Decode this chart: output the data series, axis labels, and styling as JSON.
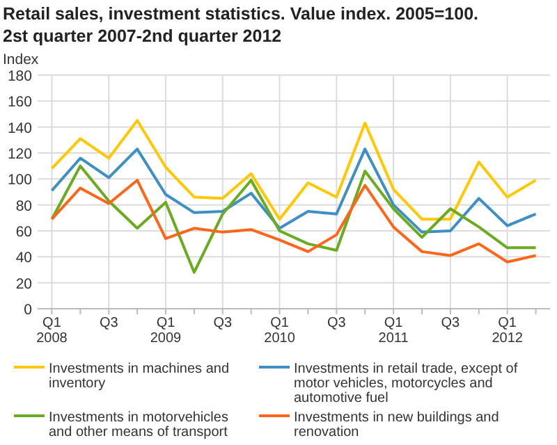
{
  "chart_data": {
    "type": "line",
    "title": "Retail sales, investment statistics. Value index. 2005=100.",
    "subtitle": "2st quarter 2007-2nd quarter 2012",
    "ylabel": "Index",
    "categories": [
      "Q1\n2008",
      null,
      "Q3",
      null,
      "Q1\n2009",
      null,
      "Q3",
      null,
      "Q1\n2010",
      null,
      "Q3",
      null,
      "Q1\n2011",
      null,
      "Q3",
      null,
      "Q1\n2012",
      null
    ],
    "series": [
      {
        "name": "Investments in machines and inventory",
        "color": "#ffc800",
        "values": [
          108,
          131,
          116,
          145,
          109,
          86,
          85,
          104,
          69,
          97,
          86,
          143,
          92,
          69,
          69,
          113,
          86,
          99
        ]
      },
      {
        "name": "Investments in retail trade, except of motor vehicles, motorcycles and automotive fuel",
        "color": "#3d8fc4",
        "values": [
          91,
          116,
          101,
          123,
          88,
          74,
          75,
          89,
          62,
          75,
          73,
          123,
          80,
          59,
          60,
          85,
          64,
          73
        ]
      },
      {
        "name": "Investments in motorvehicles and other means of transport",
        "color": "#6aab1f",
        "values": [
          69,
          110,
          83,
          62,
          82,
          28,
          73,
          99,
          60,
          50,
          45,
          106,
          77,
          55,
          77,
          63,
          47,
          47
        ]
      },
      {
        "name": "Investments in new buildings and renovation",
        "color": "#ff6619",
        "values": [
          69,
          93,
          81,
          99,
          54,
          62,
          59,
          61,
          53,
          44,
          57,
          95,
          63,
          44,
          41,
          50,
          36,
          41
        ]
      }
    ],
    "ylim": [
      0,
      180
    ],
    "yticks": [
      0,
      20,
      40,
      60,
      80,
      100,
      120,
      140,
      160,
      180
    ],
    "grid": true,
    "legend": "bottom",
    "marker": "none",
    "line_style": "solid"
  }
}
